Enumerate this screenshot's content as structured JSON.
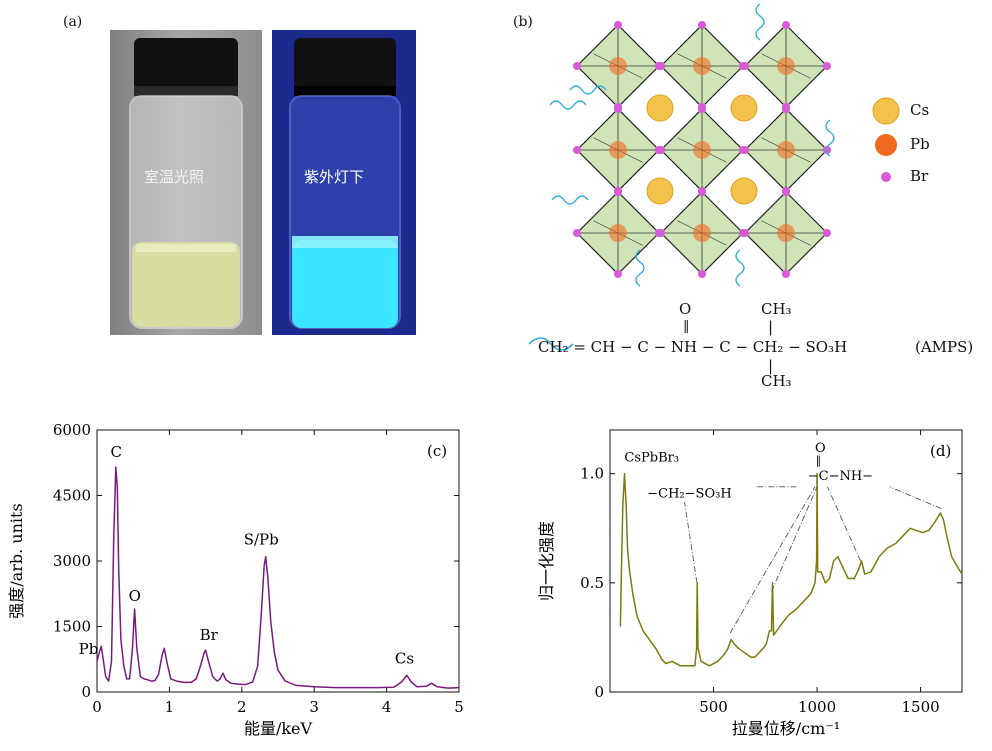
{
  "panel_labels": {
    "a": "(a)",
    "b": "(b)",
    "c": "(c)",
    "d": "(d)"
  },
  "vials": {
    "left_caption": "室温光照",
    "right_caption": "紫外灯下",
    "colors": {
      "left_liquid": "#d9dca0",
      "right_liquid": "#39e5ff",
      "right_bg": "#1b2a8c"
    }
  },
  "structure": {
    "legend": [
      {
        "label": "Cs",
        "color": "#f2c24a"
      },
      {
        "label": "Pb",
        "color": "#f06a1e"
      },
      {
        "label": "Br",
        "color": "#d85ad8"
      }
    ],
    "formula": {
      "ligand_line": "CH₂ = CH − C − NH − C − CH₂ − SO₃H",
      "ligand_name": "(AMPS)",
      "top_O": "O",
      "top_CH3": "CH₃",
      "bottom_CH3": "CH₃"
    },
    "colors": {
      "octahedron": "#cfe5b8",
      "ligand": "#33aadd"
    }
  },
  "chart_data": [
    {
      "type": "line",
      "panel": "(c)",
      "xlabel": "能量/keV",
      "ylabel": "强度/arb. units",
      "xlim": [
        0,
        5
      ],
      "ylim": [
        0,
        6000
      ],
      "xticks": [
        "0",
        "1",
        "2",
        "3",
        "4",
        "5"
      ],
      "yticks": [
        "0",
        "1500",
        "3000",
        "4500",
        "6000"
      ],
      "color": "#7b1a7e",
      "annotations": [
        {
          "text": "Pb",
          "x": 0.05,
          "y": 1050
        },
        {
          "text": "C",
          "x": 0.27,
          "y": 5150
        },
        {
          "text": "O",
          "x": 0.52,
          "y": 1900
        },
        {
          "text": "Br",
          "x": 1.5,
          "y": 960
        },
        {
          "text": "S/Pb",
          "x": 2.33,
          "y": 3100
        },
        {
          "text": "Cs",
          "x": 4.28,
          "y": 380
        }
      ],
      "series": [
        {
          "values": [
            [
              0.0,
              700
            ],
            [
              0.03,
              900
            ],
            [
              0.06,
              1050
            ],
            [
              0.09,
              700
            ],
            [
              0.12,
              350
            ],
            [
              0.16,
              250
            ],
            [
              0.2,
              700
            ],
            [
              0.23,
              3500
            ],
            [
              0.26,
              5150
            ],
            [
              0.28,
              4700
            ],
            [
              0.3,
              2800
            ],
            [
              0.33,
              1200
            ],
            [
              0.37,
              600
            ],
            [
              0.41,
              300
            ],
            [
              0.45,
              300
            ],
            [
              0.49,
              1000
            ],
            [
              0.52,
              1900
            ],
            [
              0.55,
              1000
            ],
            [
              0.6,
              350
            ],
            [
              0.65,
              300
            ],
            [
              0.7,
              280
            ],
            [
              0.75,
              250
            ],
            [
              0.8,
              260
            ],
            [
              0.85,
              400
            ],
            [
              0.9,
              850
            ],
            [
              0.93,
              1000
            ],
            [
              0.97,
              650
            ],
            [
              1.02,
              300
            ],
            [
              1.1,
              250
            ],
            [
              1.2,
              220
            ],
            [
              1.3,
              220
            ],
            [
              1.37,
              300
            ],
            [
              1.42,
              550
            ],
            [
              1.48,
              900
            ],
            [
              1.5,
              960
            ],
            [
              1.54,
              700
            ],
            [
              1.6,
              350
            ],
            [
              1.66,
              250
            ],
            [
              1.7,
              300
            ],
            [
              1.74,
              430
            ],
            [
              1.78,
              280
            ],
            [
              1.85,
              200
            ],
            [
              1.95,
              180
            ],
            [
              2.05,
              170
            ],
            [
              2.15,
              230
            ],
            [
              2.22,
              600
            ],
            [
              2.27,
              1800
            ],
            [
              2.31,
              2900
            ],
            [
              2.33,
              3100
            ],
            [
              2.36,
              2600
            ],
            [
              2.4,
              1600
            ],
            [
              2.45,
              900
            ],
            [
              2.5,
              500
            ],
            [
              2.6,
              250
            ],
            [
              2.75,
              150
            ],
            [
              3.0,
              120
            ],
            [
              3.3,
              100
            ],
            [
              3.6,
              100
            ],
            [
              3.9,
              100
            ],
            [
              4.1,
              110
            ],
            [
              4.2,
              220
            ],
            [
              4.28,
              380
            ],
            [
              4.34,
              230
            ],
            [
              4.42,
              120
            ],
            [
              4.55,
              130
            ],
            [
              4.62,
              200
            ],
            [
              4.7,
              120
            ],
            [
              4.85,
              90
            ],
            [
              5.0,
              100
            ]
          ]
        }
      ]
    },
    {
      "type": "line",
      "panel": "(d)",
      "xlabel": "拉曼位移/cm⁻¹",
      "ylabel": "归一化强度",
      "xlim": [
        0,
        1700
      ],
      "ylim": [
        0,
        1.2
      ],
      "xticks": [
        "500",
        "1000",
        "1500"
      ],
      "yticks": [
        "0",
        "0.5",
        "1.0"
      ],
      "color": "#7f7a0e",
      "annotations": [
        {
          "text": "CsPbBr₃",
          "x": 60,
          "y": 1.02
        },
        {
          "text": "−CH₂−SO₃H",
          "x": 420,
          "y": 0.5
        },
        {
          "text": "O",
          "x": 1000,
          "y": 0.98
        },
        {
          "text": "−C−NH−",
          "x": 1000,
          "y": 0.98
        }
      ],
      "series": [
        {
          "values": [
            [
              50,
              0.3
            ],
            [
              55,
              0.55
            ],
            [
              62,
              0.85
            ],
            [
              70,
              1.0
            ],
            [
              78,
              0.85
            ],
            [
              85,
              0.65
            ],
            [
              95,
              0.55
            ],
            [
              110,
              0.45
            ],
            [
              130,
              0.35
            ],
            [
              160,
              0.28
            ],
            [
              190,
              0.24
            ],
            [
              220,
              0.2
            ],
            [
              250,
              0.15
            ],
            [
              270,
              0.13
            ],
            [
              300,
              0.14
            ],
            [
              340,
              0.12
            ],
            [
              380,
              0.12
            ],
            [
              410,
              0.12
            ],
            [
              418,
              0.2
            ],
            [
              421,
              0.5
            ],
            [
              425,
              0.2
            ],
            [
              440,
              0.14
            ],
            [
              480,
              0.12
            ],
            [
              520,
              0.14
            ],
            [
              550,
              0.17
            ],
            [
              570,
              0.2
            ],
            [
              585,
              0.24
            ],
            [
              600,
              0.22
            ],
            [
              620,
              0.2
            ],
            [
              650,
              0.18
            ],
            [
              680,
              0.16
            ],
            [
              700,
              0.16
            ],
            [
              720,
              0.18
            ],
            [
              740,
              0.2
            ],
            [
              755,
              0.22
            ],
            [
              770,
              0.28
            ],
            [
              780,
              0.28
            ],
            [
              785,
              0.5
            ],
            [
              790,
              0.26
            ],
            [
              820,
              0.3
            ],
            [
              860,
              0.35
            ],
            [
              900,
              0.38
            ],
            [
              940,
              0.42
            ],
            [
              970,
              0.45
            ],
            [
              990,
              0.5
            ],
            [
              998,
              0.6
            ],
            [
              1000,
              1.0
            ],
            [
              1003,
              0.55
            ],
            [
              1020,
              0.55
            ],
            [
              1040,
              0.5
            ],
            [
              1060,
              0.52
            ],
            [
              1080,
              0.6
            ],
            [
              1100,
              0.62
            ],
            [
              1120,
              0.58
            ],
            [
              1150,
              0.52
            ],
            [
              1180,
              0.52
            ],
            [
              1200,
              0.56
            ],
            [
              1215,
              0.6
            ],
            [
              1230,
              0.54
            ],
            [
              1260,
              0.55
            ],
            [
              1300,
              0.62
            ],
            [
              1340,
              0.66
            ],
            [
              1380,
              0.68
            ],
            [
              1420,
              0.72
            ],
            [
              1450,
              0.75
            ],
            [
              1480,
              0.74
            ],
            [
              1510,
              0.73
            ],
            [
              1540,
              0.74
            ],
            [
              1570,
              0.78
            ],
            [
              1595,
              0.82
            ],
            [
              1610,
              0.79
            ],
            [
              1630,
              0.7
            ],
            [
              1650,
              0.62
            ],
            [
              1680,
              0.57
            ],
            [
              1700,
              0.54
            ]
          ]
        }
      ]
    }
  ]
}
